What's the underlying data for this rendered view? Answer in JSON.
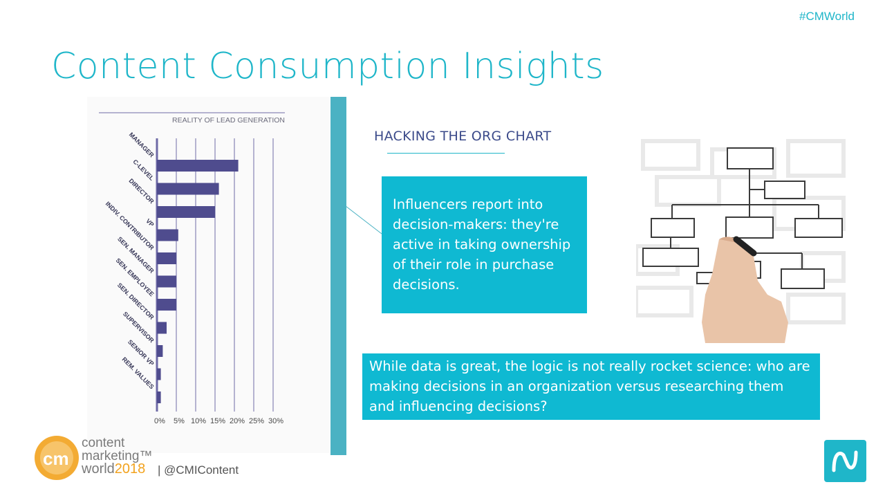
{
  "header": {
    "hashtag": "#CMWorld",
    "title": "Content Consumption Insights"
  },
  "chart_data": {
    "type": "bar",
    "orientation": "horizontal",
    "title": "REALITY OF LEAD GENERATION",
    "categories": [
      "MANAGER",
      "C-LEVEL",
      "DIRECTOR",
      "VP",
      "INDIV. CONTRIBUTOR",
      "SEN. MANAGER",
      "SEN. EMPLOYEE",
      "SEN. DIRECTOR",
      "SUPERVISOR",
      "SENIOR VP",
      "REM. VALUES"
    ],
    "values": [
      21,
      16,
      15,
      5.5,
      5,
      5,
      5,
      2.5,
      1.5,
      1,
      1
    ],
    "xticks": [
      "0%",
      "5%",
      "10%",
      "15%",
      "20%",
      "25%",
      "30%"
    ],
    "xlim": [
      0,
      30
    ],
    "grid": true,
    "colors": {
      "bar": "#4f4c8e",
      "grid": "#6e6aa6",
      "label": "#3a3a5a"
    }
  },
  "right": {
    "subhead": "HACKING THE ORG CHART",
    "box1_text": "Influencers report into decision-makers: they're active in taking ownership of their role in purchase decisions.",
    "box2_text": "While data is great, the logic is not really rocket science: who are making decisions in an organization versus researching them and influencing decisions?"
  },
  "footer": {
    "logo_line1": "content",
    "logo_line2": "marketing™",
    "logo_line3": "world",
    "logo_year": "2018",
    "logo_mark": "cm",
    "handle": "|  @CMIContent"
  },
  "colors": {
    "accent": "#1fb6c9",
    "box": "#0fb9d2",
    "navy": "#3b4a8a",
    "logo_orange": "#f2a21d"
  },
  "icons": {
    "corner": "n-logo-icon",
    "org": "org-chart-illustration"
  }
}
